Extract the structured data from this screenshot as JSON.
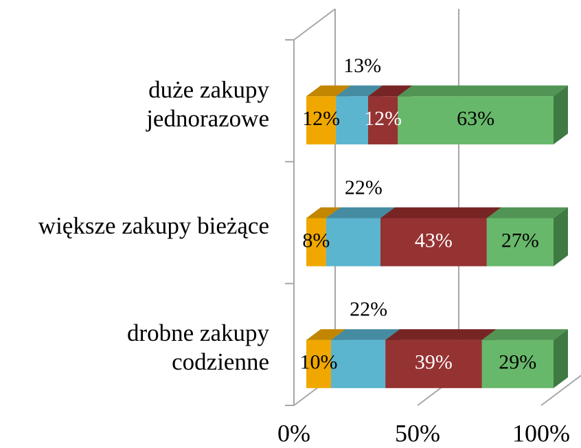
{
  "chart_data": {
    "type": "bar3d_stacked_horizontal",
    "categories": [
      "duże zakupy\njednorazowe",
      "większe zakupy bieżące",
      "drobne zakupy\ncodzienne"
    ],
    "series": [
      {
        "color": "#f0a800",
        "top_color": "#c28600",
        "label_color": "#000000",
        "values": [
          12,
          8,
          10
        ],
        "value_labels": [
          "12%",
          "8%",
          "10%"
        ]
      },
      {
        "color": "#5bb5cf",
        "top_color": "#458ca2",
        "label_color": "#000000",
        "values": [
          13,
          22,
          22
        ],
        "value_labels": [
          "13%",
          "22%",
          "22%"
        ]
      },
      {
        "color": "#953232",
        "top_color": "#772424",
        "label_color": "#ffffff",
        "values": [
          12,
          43,
          39
        ],
        "value_labels": [
          "12%",
          "43%",
          "39%"
        ]
      },
      {
        "color": "#68b86b",
        "top_color": "#519454",
        "side_color": "#3f7a43",
        "label_color": "#000000",
        "values": [
          63,
          27,
          29
        ],
        "value_labels": [
          "63%",
          "27%",
          "29%"
        ]
      }
    ],
    "xlim": [
      0,
      100
    ],
    "xticks": [
      {
        "value": 0,
        "label": "0%"
      },
      {
        "value": 50,
        "label": "50%"
      },
      {
        "value": 100,
        "label": "100%"
      }
    ],
    "grid": true
  }
}
